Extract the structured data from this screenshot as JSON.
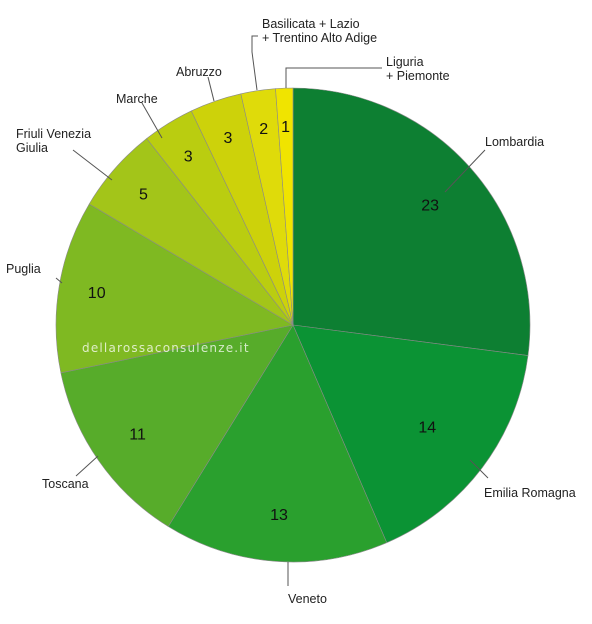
{
  "chart_data": {
    "type": "pie",
    "title": "",
    "watermark": "dellarossaconsulenze.it",
    "slices": [
      {
        "label": "Lombardia",
        "value": 23,
        "color": "#0d7f32"
      },
      {
        "label": "Emilia Romagna",
        "value": 14,
        "color": "#0b9334"
      },
      {
        "label": "Veneto",
        "value": 13,
        "color": "#2aa02e"
      },
      {
        "label": "Toscana",
        "value": 11,
        "color": "#57ac2a"
      },
      {
        "label": "Puglia",
        "value": 10,
        "color": "#7fb922"
      },
      {
        "label": "Friuli Venezia Giulia",
        "label_lines": [
          "Friuli Venezia",
          "Giulia"
        ],
        "value": 5,
        "color": "#a3c519"
      },
      {
        "label": "Marche",
        "value": 3,
        "color": "#bacd10"
      },
      {
        "label": "Abruzzo",
        "value": 3,
        "color": "#cdd20a"
      },
      {
        "label": "Basilicata + Lazio + Trentino Alto Adige",
        "label_lines": [
          "Basilicata + Lazio",
          "+ Trentino Alto Adige"
        ],
        "value": 2,
        "color": "#dfdb0a"
      },
      {
        "label": "Liguria + Piemonte",
        "label_lines": [
          "Liguria",
          "+ Piemonte"
        ],
        "value": 1,
        "color": "#f0e400"
      }
    ]
  }
}
